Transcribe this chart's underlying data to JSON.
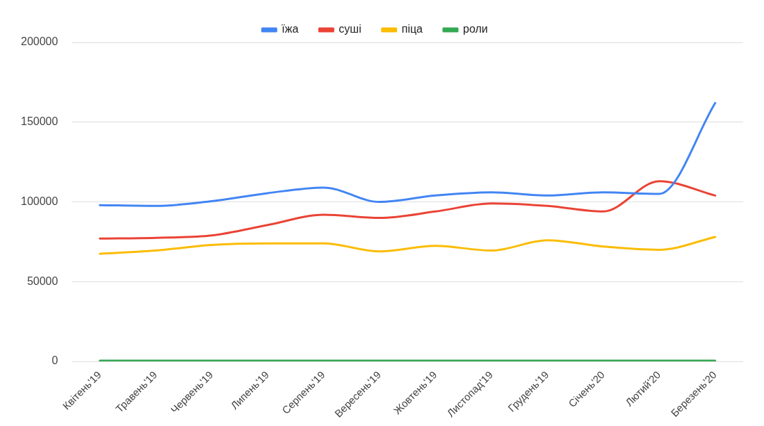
{
  "chart_data": {
    "type": "line",
    "categories": [
      "Квітень'19",
      "Травень'19",
      "Червень'19",
      "Липень'19",
      "Серпень'19",
      "Вересень'19",
      "Жовтень'19",
      "Листопад'19",
      "Грудень'19",
      "Січень'20",
      "Лютий'20",
      "Березень'20"
    ],
    "series": [
      {
        "name": "їжа",
        "color": "#4285f4",
        "values": [
          98000,
          97500,
          100500,
          105500,
          109000,
          100000,
          104000,
          106000,
          104000,
          106000,
          105000,
          162000
        ]
      },
      {
        "name": "суші",
        "color": "#ea4335",
        "values": [
          77000,
          77500,
          79000,
          85500,
          92000,
          90000,
          94000,
          99000,
          97500,
          94000,
          113000,
          104000
        ]
      },
      {
        "name": "піца",
        "color": "#fbbc04",
        "values": [
          67500,
          69500,
          73000,
          74000,
          74000,
          69000,
          72500,
          69500,
          76000,
          72000,
          70000,
          78000
        ]
      },
      {
        "name": "роли",
        "color": "#34a853",
        "values": [
          500,
          500,
          500,
          500,
          500,
          500,
          500,
          500,
          500,
          500,
          500,
          500
        ]
      }
    ],
    "ylim": [
      0,
      200000
    ],
    "yticks": [
      0,
      50000,
      100000,
      150000,
      200000
    ],
    "grid": "y",
    "legend": "top",
    "marker": "none",
    "line_style": "solid"
  }
}
